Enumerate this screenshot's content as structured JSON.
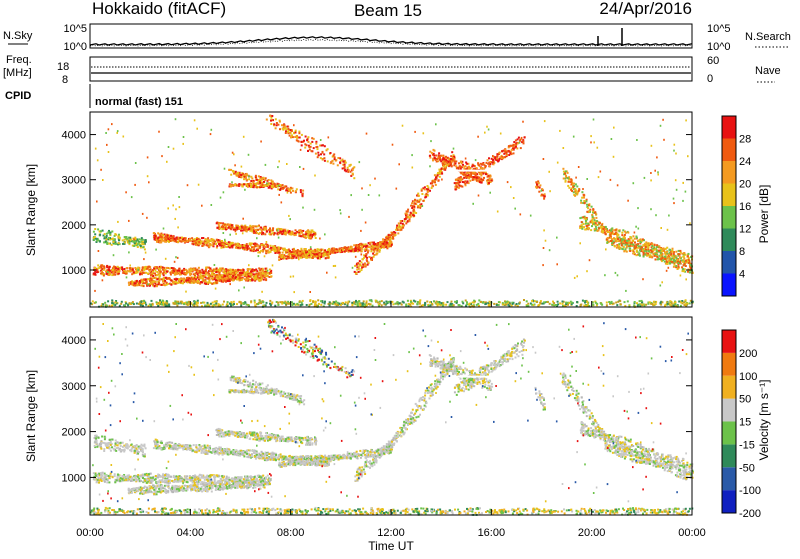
{
  "header": {
    "station": "Hokkaido (fitACF)",
    "beam": "Beam 15",
    "date": "24/Apr/2016"
  },
  "strips": {
    "nsky_label": "N.Sky",
    "nsearch_label": "N.Search",
    "noise_ticks": [
      "10^5",
      "10^0"
    ],
    "freq_label": "Freq.",
    "freq_unit": "[MHz]",
    "freq_ticks": [
      "18",
      "8"
    ],
    "nave_label": "Nave",
    "nave_ticks": [
      "60",
      "0"
    ],
    "cpid_label": "CPID",
    "cpid_text": "normal (fast) 151"
  },
  "chart_data": [
    {
      "type": "heatmap",
      "name": "power",
      "ylabel": "Slant Range [km]",
      "yticks": [
        "1000",
        "2000",
        "3000",
        "4000"
      ],
      "ylim": [
        180,
        4500
      ],
      "xlim": [
        0,
        24
      ],
      "colorbar": {
        "label": "Power [dB]",
        "ticks": [
          "4",
          "8",
          "12",
          "16",
          "20",
          "24",
          "28"
        ],
        "colors": [
          "#0a14ff",
          "#2255aa",
          "#2f8a5a",
          "#6cc24a",
          "#e8c21a",
          "#f49a20",
          "#f05a10",
          "#e81212"
        ]
      }
    },
    {
      "type": "heatmap",
      "name": "velocity",
      "ylabel": "Slant Range [km]",
      "yticks": [
        "1000",
        "2000",
        "3000",
        "4000"
      ],
      "ylim": [
        180,
        4500
      ],
      "xlim": [
        0,
        24
      ],
      "xlabel": "Time UT",
      "xticks": [
        "00:00",
        "04:00",
        "08:00",
        "12:00",
        "16:00",
        "20:00",
        "00:00"
      ],
      "colorbar": {
        "label": "Velocity [m s⁻¹]",
        "ticks": [
          "200",
          "100",
          "50",
          "15",
          "-15",
          "-50",
          "-100",
          "-200"
        ],
        "colors": [
          "#1020c0",
          "#2a5aa8",
          "#2f8a5a",
          "#6cc24a",
          "#c8c8c8",
          "#f0b020",
          "#f07a10",
          "#e81212"
        ]
      }
    }
  ]
}
